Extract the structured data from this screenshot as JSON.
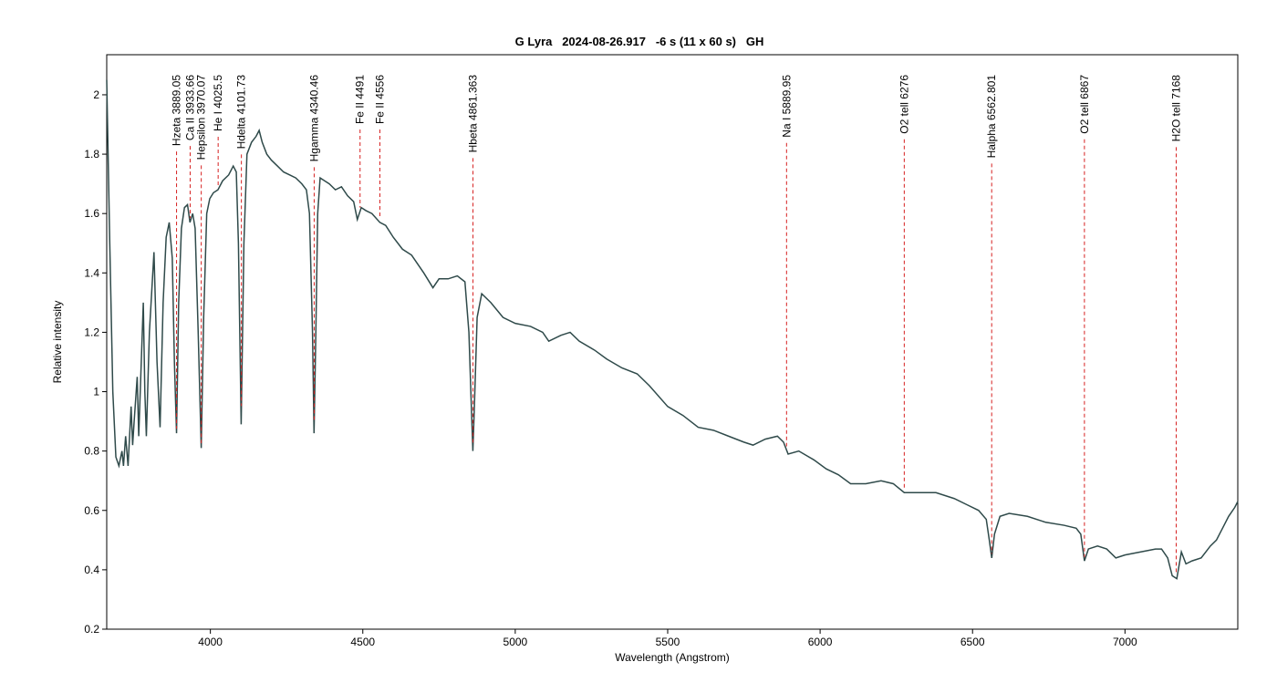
{
  "chart_data": {
    "type": "line",
    "title": "G Lyra   2024-08-26.917   -6 s (11 x 60 s)   GH",
    "x_label": "Wavelength (Angstrom)",
    "y_label": "Relative intensity",
    "xlim": [
      3660,
      7370
    ],
    "ylim": [
      0.2,
      2.135
    ],
    "xticks": [
      4000,
      4500,
      5000,
      5500,
      6000,
      6500,
      7000
    ],
    "yticks": [
      0.2,
      0.4,
      0.6,
      0.8,
      1,
      1.2,
      1.4,
      1.6,
      1.8,
      2
    ],
    "x": [
      3660,
      3670,
      3680,
      3690,
      3700,
      3710,
      3715,
      3722,
      3730,
      3740,
      3745,
      3750,
      3760,
      3765,
      3775,
      3780,
      3785,
      3790,
      3800,
      3815,
      3825,
      3835,
      3845,
      3855,
      3865,
      3875,
      3882,
      3889,
      3896,
      3905,
      3915,
      3925,
      3933,
      3942,
      3950,
      3960,
      3970,
      3978,
      3988,
      3998,
      4010,
      4025,
      4040,
      4060,
      4075,
      4085,
      4092,
      4101,
      4110,
      4120,
      4135,
      4150,
      4160,
      4170,
      4185,
      4200,
      4220,
      4240,
      4260,
      4280,
      4300,
      4315,
      4325,
      4335,
      4340,
      4346,
      4352,
      4360,
      4375,
      4390,
      4410,
      4430,
      4450,
      4470,
      4482,
      4495,
      4510,
      4530,
      4556,
      4575,
      4600,
      4630,
      4660,
      4700,
      4730,
      4750,
      4780,
      4810,
      4835,
      4848,
      4856,
      4861,
      4866,
      4875,
      4890,
      4920,
      4960,
      5000,
      5050,
      5090,
      5110,
      5150,
      5180,
      5210,
      5260,
      5300,
      5350,
      5400,
      5440,
      5500,
      5550,
      5600,
      5650,
      5700,
      5750,
      5780,
      5820,
      5860,
      5880,
      5895,
      5930,
      5980,
      6020,
      6060,
      6100,
      6150,
      6200,
      6240,
      6276,
      6320,
      6380,
      6440,
      6480,
      6520,
      6545,
      6555,
      6563,
      6572,
      6590,
      6620,
      6680,
      6740,
      6800,
      6840,
      6855,
      6867,
      6880,
      6910,
      6940,
      6970,
      7000,
      7050,
      7100,
      7120,
      7140,
      7155,
      7170,
      7185,
      7200,
      7220,
      7250,
      7280,
      7300,
      7320,
      7340,
      7360,
      7370
    ],
    "series": [
      {
        "name": "G Lyra",
        "color": "#2f4a4a",
        "values": [
          2.05,
          1.5,
          1.0,
          0.78,
          0.75,
          0.8,
          0.75,
          0.85,
          0.75,
          0.95,
          0.82,
          0.9,
          1.05,
          0.85,
          1.15,
          1.3,
          1.0,
          0.85,
          1.2,
          1.47,
          1.1,
          0.88,
          1.3,
          1.52,
          1.57,
          1.45,
          1.1,
          0.86,
          1.3,
          1.55,
          1.62,
          1.63,
          1.57,
          1.6,
          1.55,
          1.2,
          0.81,
          1.25,
          1.6,
          1.65,
          1.67,
          1.68,
          1.71,
          1.73,
          1.76,
          1.74,
          1.5,
          0.89,
          1.5,
          1.8,
          1.84,
          1.86,
          1.88,
          1.84,
          1.8,
          1.78,
          1.76,
          1.74,
          1.73,
          1.72,
          1.7,
          1.68,
          1.6,
          1.2,
          0.86,
          1.2,
          1.6,
          1.72,
          1.71,
          1.7,
          1.68,
          1.69,
          1.66,
          1.64,
          1.58,
          1.62,
          1.61,
          1.6,
          1.57,
          1.56,
          1.52,
          1.48,
          1.46,
          1.4,
          1.35,
          1.38,
          1.38,
          1.39,
          1.37,
          1.2,
          0.95,
          0.8,
          0.95,
          1.25,
          1.33,
          1.3,
          1.25,
          1.23,
          1.22,
          1.2,
          1.17,
          1.19,
          1.2,
          1.17,
          1.14,
          1.11,
          1.08,
          1.06,
          1.02,
          0.95,
          0.92,
          0.88,
          0.87,
          0.85,
          0.83,
          0.82,
          0.84,
          0.85,
          0.83,
          0.79,
          0.8,
          0.77,
          0.74,
          0.72,
          0.69,
          0.69,
          0.7,
          0.69,
          0.66,
          0.66,
          0.66,
          0.64,
          0.62,
          0.6,
          0.57,
          0.5,
          0.44,
          0.52,
          0.58,
          0.59,
          0.58,
          0.56,
          0.55,
          0.54,
          0.52,
          0.43,
          0.47,
          0.48,
          0.47,
          0.44,
          0.45,
          0.46,
          0.47,
          0.47,
          0.44,
          0.38,
          0.37,
          0.46,
          0.42,
          0.43,
          0.44,
          0.48,
          0.5,
          0.54,
          0.58,
          0.61,
          0.63
        ]
      }
    ],
    "annotations": [
      {
        "x": 3889.05,
        "label": "Hzeta 3889.05"
      },
      {
        "x": 3933.66,
        "label": "Ca II 3933.66"
      },
      {
        "x": 3970.07,
        "label": "Hepsilon 3970.07"
      },
      {
        "x": 4025.5,
        "label": "He I 4025.5"
      },
      {
        "x": 4101.73,
        "label": "Hdelta 4101.73"
      },
      {
        "x": 4340.46,
        "label": "Hgamma 4340.46"
      },
      {
        "x": 4491,
        "label": "Fe II 4491"
      },
      {
        "x": 4556,
        "label": "Fe II 4556"
      },
      {
        "x": 4861.363,
        "label": "Hbeta 4861.363"
      },
      {
        "x": 5889.95,
        "label": "Na I 5889.95"
      },
      {
        "x": 6276,
        "label": "O2 tell 6276"
      },
      {
        "x": 6562.801,
        "label": "Halpha 6562.801"
      },
      {
        "x": 6867,
        "label": "O2 tell 6867"
      },
      {
        "x": 7168,
        "label": "H2O tell 7168"
      }
    ],
    "annotation_color": "#d62020"
  }
}
